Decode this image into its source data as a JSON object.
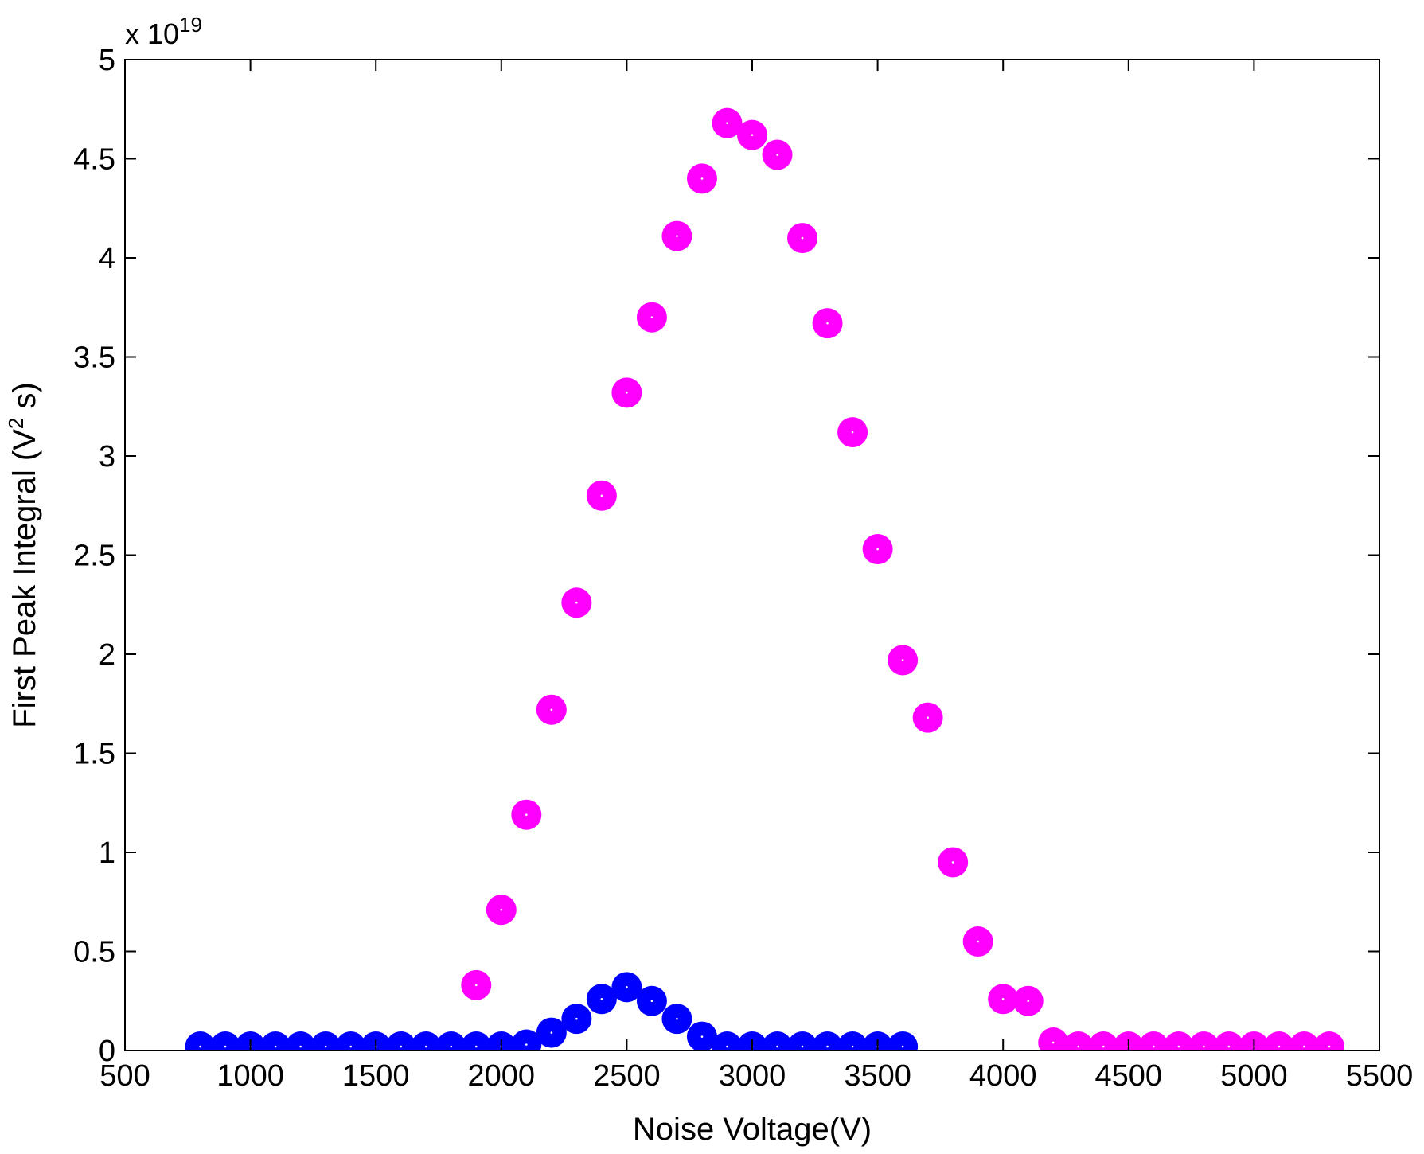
{
  "chart_data": {
    "type": "scatter",
    "title": "",
    "xlabel": "Noise Voltage(V)",
    "ylabel_main": "First Peak Integral (V",
    "ylabel_sup": "2",
    "ylabel_tail": " s)",
    "y_multiplier_prefix": "x 10",
    "y_multiplier_exp": "19",
    "xlim": [
      500,
      5500
    ],
    "ylim": [
      0,
      5
    ],
    "xticks": [
      500,
      1000,
      1500,
      2000,
      2500,
      3000,
      3500,
      4000,
      4500,
      5000,
      5500
    ],
    "yticks": [
      0,
      0.5,
      1,
      1.5,
      2,
      2.5,
      3,
      3.5,
      4,
      4.5,
      5
    ],
    "ytick_labels": [
      "0",
      "0.5",
      "1",
      "1.5",
      "2",
      "2.5",
      "3",
      "3.5",
      "4",
      "4.5",
      "5"
    ],
    "grid": false,
    "legend": "none",
    "series": [
      {
        "color": "#ff00ff",
        "x": [
          800,
          1900,
          2000,
          2100,
          2200,
          2300,
          2400,
          2500,
          2600,
          2700,
          2800,
          2900,
          3000,
          3100,
          3200,
          3300,
          3400,
          3500,
          3600,
          3700,
          3800,
          3900,
          4000,
          4100,
          4200,
          4300,
          4400,
          4500,
          4600,
          4700,
          4800,
          4900,
          5000,
          5100,
          5200,
          5300
        ],
        "y": [
          0.0,
          0.33,
          0.71,
          1.19,
          1.72,
          2.26,
          2.8,
          3.32,
          3.7,
          4.11,
          4.4,
          4.68,
          4.62,
          4.52,
          4.1,
          3.67,
          3.12,
          2.53,
          1.97,
          1.68,
          0.95,
          0.55,
          0.26,
          0.25,
          0.04,
          0.02,
          0.02,
          0.02,
          0.02,
          0.02,
          0.02,
          0.02,
          0.02,
          0.02,
          0.02,
          0.02
        ]
      },
      {
        "color": "#0000ff",
        "x": [
          800,
          900,
          1000,
          1100,
          1200,
          1300,
          1400,
          1500,
          1600,
          1700,
          1800,
          1900,
          2000,
          2100,
          2200,
          2300,
          2400,
          2500,
          2600,
          2700,
          2800,
          2900,
          3000,
          3100,
          3200,
          3300,
          3400,
          3500,
          3600
        ],
        "y": [
          0.02,
          0.02,
          0.02,
          0.02,
          0.02,
          0.02,
          0.02,
          0.02,
          0.02,
          0.02,
          0.02,
          0.02,
          0.02,
          0.03,
          0.09,
          0.16,
          0.26,
          0.32,
          0.25,
          0.16,
          0.07,
          0.02,
          0.02,
          0.02,
          0.02,
          0.02,
          0.02,
          0.02,
          0.02
        ]
      }
    ]
  }
}
